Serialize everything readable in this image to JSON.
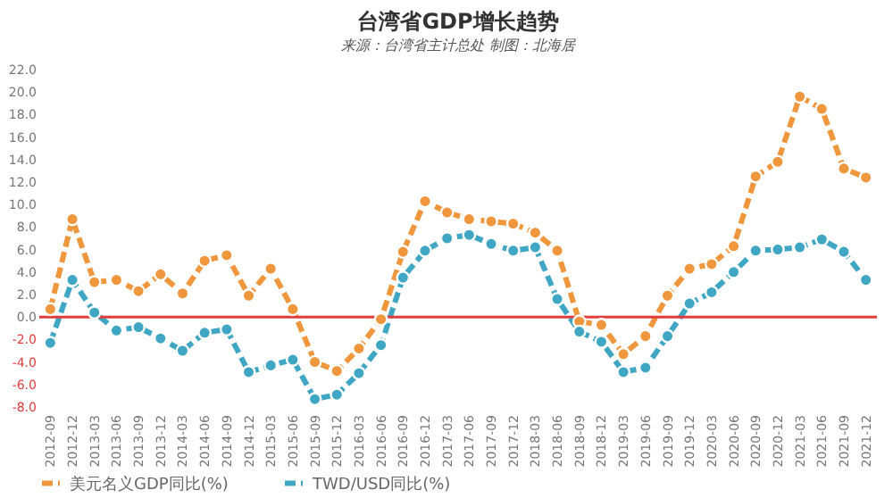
{
  "chart_data": {
    "type": "line",
    "title": "台湾省GDP增长趋势",
    "annotations": [
      "来源：台湾省主计总处 制图：北海居"
    ],
    "categories": [
      "2012-09",
      "2012-12",
      "2013-03",
      "2013-06",
      "2013-09",
      "2013-12",
      "2014-03",
      "2014-06",
      "2014-09",
      "2014-12",
      "2015-03",
      "2015-06",
      "2015-09",
      "2015-12",
      "2016-03",
      "2016-06",
      "2016-09",
      "2016-12",
      "2017-03",
      "2017-06",
      "2017-09",
      "2017-12",
      "2018-03",
      "2018-06",
      "2018-09",
      "2018-12",
      "2019-03",
      "2019-06",
      "2019-09",
      "2019-12",
      "2020-03",
      "2020-06",
      "2020-09",
      "2020-12",
      "2021-03",
      "2021-06",
      "2021-09",
      "2021-12"
    ],
    "series": [
      {
        "name": "美元名义GDP同比(%)",
        "color": "#f0963c",
        "values": [
          0.7,
          8.7,
          3.1,
          3.3,
          2.3,
          3.8,
          2.1,
          5.0,
          5.5,
          1.9,
          4.3,
          0.7,
          -4.0,
          -4.8,
          -2.8,
          -0.2,
          5.8,
          10.3,
          9.3,
          8.7,
          8.5,
          8.3,
          7.5,
          5.9,
          -0.4,
          -0.7,
          -3.3,
          -1.7,
          1.9,
          4.3,
          4.7,
          6.3,
          12.5,
          13.8,
          19.6,
          18.5,
          13.2,
          12.4
        ]
      },
      {
        "name": "TWD/USD同比(%)",
        "color": "#3fa7c4",
        "values": [
          -2.3,
          3.3,
          0.4,
          -1.2,
          -0.9,
          -1.9,
          -3.0,
          -1.4,
          -1.1,
          -4.9,
          -4.3,
          -3.8,
          -7.3,
          -6.9,
          -5.0,
          -2.5,
          3.5,
          5.9,
          7.0,
          7.3,
          6.5,
          5.9,
          6.2,
          1.6,
          -1.3,
          -2.2,
          -4.9,
          -4.5,
          -1.7,
          1.2,
          2.2,
          4.0,
          5.9,
          6.0,
          6.2,
          6.9,
          5.8,
          3.3
        ]
      }
    ],
    "ylim": [
      -8,
      22
    ],
    "yticks": [
      {
        "value": -8,
        "label": "-8.0"
      },
      {
        "value": -6,
        "label": "-6.0"
      },
      {
        "value": -4,
        "label": "-4.0"
      },
      {
        "value": -2,
        "label": "-2.0"
      },
      {
        "value": 0,
        "label": "0.0"
      },
      {
        "value": 2,
        "label": "2.0"
      },
      {
        "value": 4,
        "label": "4.0"
      },
      {
        "value": 6,
        "label": "6.0"
      },
      {
        "value": 8,
        "label": "8.0"
      },
      {
        "value": 10,
        "label": "10.0"
      },
      {
        "value": 12,
        "label": "12.0"
      },
      {
        "value": 14,
        "label": "14.0"
      },
      {
        "value": 16,
        "label": "16.0"
      },
      {
        "value": 18,
        "label": "18.0"
      },
      {
        "value": 20,
        "label": "20.0"
      },
      {
        "value": 22,
        "label": "22.0"
      }
    ],
    "ref_lines": [
      {
        "axis": "y",
        "value": 0,
        "color": "#e03c3c"
      }
    ],
    "grid": false,
    "legend": "bottom",
    "marker": "circle",
    "line_style": "dashed"
  }
}
